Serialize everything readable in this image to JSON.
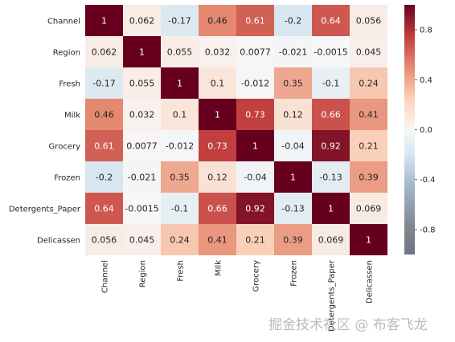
{
  "chart_data": {
    "type": "heatmap",
    "rows": [
      "Channel",
      "Region",
      "Fresh",
      "Milk",
      "Grocery",
      "Frozen",
      "Detergents_Paper",
      "Delicassen"
    ],
    "columns": [
      "Channel",
      "Region",
      "Fresh",
      "Milk",
      "Grocery",
      "Frozen",
      "Detergents_Paper",
      "Delicassen"
    ],
    "values": [
      [
        1,
        0.062,
        -0.17,
        0.46,
        0.61,
        -0.2,
        0.64,
        0.056
      ],
      [
        0.062,
        1,
        0.055,
        0.032,
        0.0077,
        -0.021,
        -0.0015,
        0.045
      ],
      [
        -0.17,
        0.055,
        1,
        0.1,
        -0.012,
        0.35,
        -0.1,
        0.24
      ],
      [
        0.46,
        0.032,
        0.1,
        1,
        0.73,
        0.12,
        0.66,
        0.41
      ],
      [
        0.61,
        0.0077,
        -0.012,
        0.73,
        1,
        -0.04,
        0.92,
        0.21
      ],
      [
        -0.2,
        -0.021,
        0.35,
        0.12,
        -0.04,
        1,
        -0.13,
        0.39
      ],
      [
        0.64,
        -0.0015,
        -0.1,
        0.66,
        0.92,
        -0.13,
        1,
        0.069
      ],
      [
        0.056,
        0.045,
        0.24,
        0.41,
        0.21,
        0.39,
        0.069,
        1
      ]
    ],
    "cell_labels": [
      [
        "1",
        "0.062",
        "-0.17",
        "0.46",
        "0.61",
        "-0.2",
        "0.64",
        "0.056"
      ],
      [
        "0.062",
        "1",
        "0.055",
        "0.032",
        "0.0077",
        "-0.021",
        "-0.0015",
        "0.045"
      ],
      [
        "-0.17",
        "0.055",
        "1",
        "0.1",
        "-0.012",
        "0.35",
        "-0.1",
        "0.24"
      ],
      [
        "0.46",
        "0.032",
        "0.1",
        "1",
        "0.73",
        "0.12",
        "0.66",
        "0.41"
      ],
      [
        "0.61",
        "0.0077",
        "-0.012",
        "0.73",
        "1",
        "-0.04",
        "0.92",
        "0.21"
      ],
      [
        "-0.2",
        "-0.021",
        "0.35",
        "0.12",
        "-0.04",
        "1",
        "-0.13",
        "0.39"
      ],
      [
        "0.64",
        "-0.0015",
        "-0.1",
        "0.66",
        "0.92",
        "-0.13",
        "1",
        "0.069"
      ],
      [
        "0.056",
        "0.045",
        "0.24",
        "0.41",
        "0.21",
        "0.39",
        "0.069",
        "1"
      ]
    ],
    "colorbar": {
      "range": [
        -1,
        1
      ],
      "ticks": [
        "0.8",
        "0.4",
        "0.0",
        "-0.4",
        "-0.8"
      ],
      "tick_values": [
        0.8,
        0.4,
        0.0,
        -0.4,
        -0.8
      ]
    },
    "colors": {
      "high": "#67001f",
      "mid": "#f7f7f7",
      "low": "#6e7582"
    },
    "legend_position": "right"
  },
  "watermark": "掘金技术社区 @ 布客飞龙"
}
